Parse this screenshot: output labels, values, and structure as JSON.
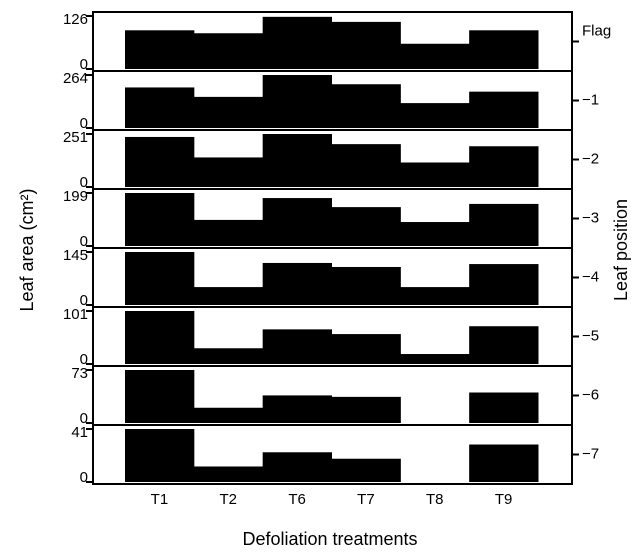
{
  "figure": {
    "xlabel": "Defoliation treatments",
    "ylabel": "Leaf area (cm²)",
    "y2label": "Leaf position",
    "categories": [
      "T1",
      "T2",
      "T6",
      "T7",
      "T8",
      "T9"
    ]
  },
  "chart_data": [
    {
      "type": "bar",
      "label": "Flag",
      "color": "#000000",
      "values": [
        92,
        85,
        124,
        112,
        60,
        92
      ],
      "ylim": [
        0,
        126
      ],
      "yticks": [
        0,
        126
      ]
    },
    {
      "type": "bar",
      "label": "−1",
      "color": "#000000",
      "values": [
        202,
        155,
        264,
        218,
        124,
        181
      ],
      "ylim": [
        0,
        264
      ],
      "yticks": [
        0,
        264
      ]
    },
    {
      "type": "bar",
      "label": "−2",
      "color": "#000000",
      "values": [
        237,
        140,
        251,
        203,
        116,
        193
      ],
      "ylim": [
        0,
        251
      ],
      "yticks": [
        0,
        251
      ]
    },
    {
      "type": "bar",
      "label": "−3",
      "color": "#000000",
      "values": [
        199,
        98,
        180,
        146,
        90,
        158
      ],
      "ylim": [
        0,
        199
      ],
      "yticks": [
        0,
        199
      ]
    },
    {
      "type": "bar",
      "label": "−4",
      "color": "#000000",
      "values": [
        145,
        49,
        115,
        104,
        49,
        112
      ],
      "ylim": [
        0,
        145
      ],
      "yticks": [
        0,
        145
      ]
    },
    {
      "type": "bar",
      "label": "−5",
      "color": "#000000",
      "values": [
        101,
        30,
        66,
        57,
        19,
        72
      ],
      "ylim": [
        0,
        101
      ],
      "yticks": [
        0,
        101
      ]
    },
    {
      "type": "bar",
      "label": "−6",
      "color": "#000000",
      "values": [
        73,
        21,
        38,
        36,
        0,
        42
      ],
      "ylim": [
        0,
        73
      ],
      "yticks": [
        0,
        73
      ]
    },
    {
      "type": "bar",
      "label": "−7",
      "color": "#000000",
      "values": [
        41,
        12,
        23,
        18,
        0,
        29
      ],
      "ylim": [
        0,
        41
      ],
      "yticks": [
        0,
        41
      ]
    }
  ]
}
